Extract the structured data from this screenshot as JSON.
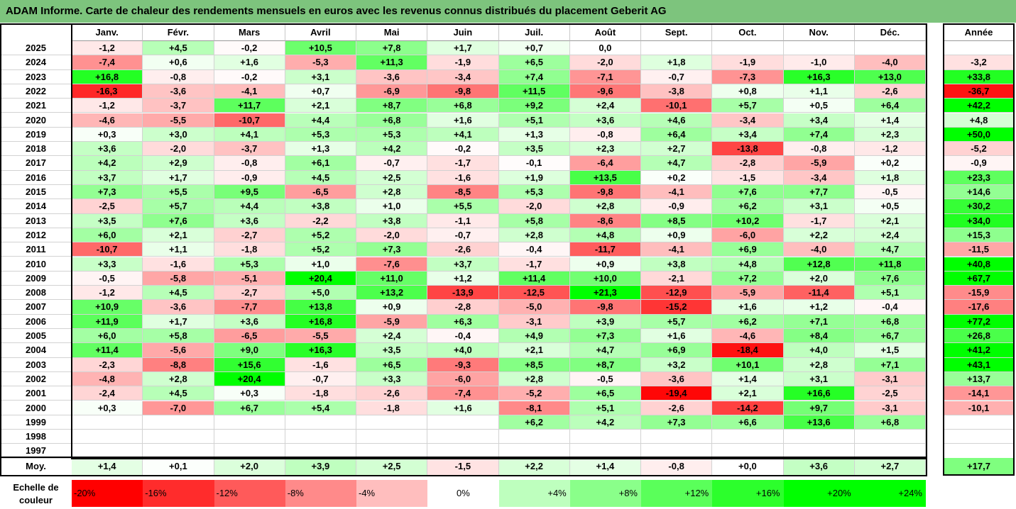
{
  "title": "ADAM Informe. Carte de chaleur des rendements mensuels en euros avec les revenus connus distribués du placement Geberit AG",
  "colors": {
    "title_bar": "#7dc47d",
    "negative_max": "#ff0000",
    "positive_max": "#00ff00",
    "neutral": "#ffffff"
  },
  "chart_data": {
    "type": "heatmap",
    "title": "ADAM Informe. Carte de chaleur des rendements mensuels en euros avec les revenus connus distribués du placement Geberit AG",
    "columns": [
      "Janv.",
      "Févr.",
      "Mars",
      "Avril",
      "Mai",
      "Juin",
      "Juil.",
      "Août",
      "Sept.",
      "Oct.",
      "Nov.",
      "Déc."
    ],
    "year_header": "Année",
    "rows": [
      {
        "year": "2025",
        "months": [
          "-1,2",
          "+4,5",
          "-0,2",
          "+10,5",
          "+7,8",
          "+1,7",
          "+0,7",
          "0,0",
          "",
          "",
          "",
          ""
        ],
        "annual": ""
      },
      {
        "year": "2024",
        "months": [
          "-7,4",
          "+0,6",
          "+1,6",
          "-5,3",
          "+11,3",
          "-1,9",
          "+6,5",
          "-2,0",
          "+1,8",
          "-1,9",
          "-1,0",
          "-4,0"
        ],
        "annual": "-3,2"
      },
      {
        "year": "2023",
        "months": [
          "+16,8",
          "-0,8",
          "-0,2",
          "+3,1",
          "-3,6",
          "-3,4",
          "+7,4",
          "-7,1",
          "-0,7",
          "-7,3",
          "+16,3",
          "+13,0"
        ],
        "annual": "+33,8"
      },
      {
        "year": "2022",
        "months": [
          "-16,3",
          "-3,6",
          "-4,1",
          "+0,7",
          "-6,9",
          "-9,8",
          "+11,5",
          "-9,6",
          "-3,8",
          "+0,8",
          "+1,1",
          "-2,6"
        ],
        "annual": "-36,7"
      },
      {
        "year": "2021",
        "months": [
          "-1,2",
          "-3,7",
          "+11,7",
          "+2,1",
          "+8,7",
          "+6,8",
          "+9,2",
          "+2,4",
          "-10,1",
          "+5,7",
          "+0,5",
          "+6,4"
        ],
        "annual": "+42,2"
      },
      {
        "year": "2020",
        "months": [
          "-4,6",
          "-5,5",
          "-10,7",
          "+4,4",
          "+6,8",
          "+1,6",
          "+5,1",
          "+3,6",
          "+4,6",
          "-3,4",
          "+3,4",
          "+1,4"
        ],
        "annual": "+4,8"
      },
      {
        "year": "2019",
        "months": [
          "+0,3",
          "+3,0",
          "+4,1",
          "+5,3",
          "+5,3",
          "+4,1",
          "+1,3",
          "-0,8",
          "+6,4",
          "+3,4",
          "+7,4",
          "+2,3"
        ],
        "annual": "+50,0"
      },
      {
        "year": "2018",
        "months": [
          "+3,6",
          "-2,0",
          "-3,7",
          "+1,3",
          "+4,2",
          "-0,2",
          "+3,5",
          "+2,3",
          "+2,7",
          "-13,8",
          "-0,8",
          "-1,2"
        ],
        "annual": "-5,2"
      },
      {
        "year": "2017",
        "months": [
          "+4,2",
          "+2,9",
          "-0,8",
          "+6,1",
          "-0,7",
          "-1,7",
          "-0,1",
          "-6,4",
          "+4,7",
          "-2,8",
          "-5,9",
          "+0,2"
        ],
        "annual": "-0,9"
      },
      {
        "year": "2016",
        "months": [
          "+3,7",
          "+1,7",
          "-0,9",
          "+4,5",
          "+2,5",
          "-1,6",
          "+1,9",
          "+13,5",
          "+0,2",
          "-1,5",
          "-3,4",
          "+1,8"
        ],
        "annual": "+23,3"
      },
      {
        "year": "2015",
        "months": [
          "+7,3",
          "+5,5",
          "+9,5",
          "-6,5",
          "+2,8",
          "-8,5",
          "+5,3",
          "-9,8",
          "-4,1",
          "+7,6",
          "+7,7",
          "-0,5"
        ],
        "annual": "+14,6"
      },
      {
        "year": "2014",
        "months": [
          "-2,5",
          "+5,7",
          "+4,4",
          "+3,8",
          "+1,0",
          "+5,5",
          "-2,0",
          "+2,8",
          "-0,9",
          "+6,2",
          "+3,1",
          "+0,5"
        ],
        "annual": "+30,2"
      },
      {
        "year": "2013",
        "months": [
          "+3,5",
          "+7,6",
          "+3,6",
          "-2,2",
          "+3,8",
          "-1,1",
          "+5,8",
          "-8,6",
          "+8,5",
          "+10,2",
          "-1,7",
          "+2,1"
        ],
        "annual": "+34,0"
      },
      {
        "year": "2012",
        "months": [
          "+6,0",
          "+2,1",
          "-2,7",
          "+5,2",
          "-2,0",
          "-0,7",
          "+2,8",
          "+4,8",
          "+0,9",
          "-6,0",
          "+2,2",
          "+2,4"
        ],
        "annual": "+15,3"
      },
      {
        "year": "2011",
        "months": [
          "-10,7",
          "+1,1",
          "-1,8",
          "+5,2",
          "+7,3",
          "-2,6",
          "-0,4",
          "-11,7",
          "-4,1",
          "+6,9",
          "-4,0",
          "+4,7"
        ],
        "annual": "-11,5"
      },
      {
        "year": "2010",
        "months": [
          "+3,3",
          "-1,6",
          "+5,3",
          "+1,0",
          "-7,6",
          "+3,7",
          "-1,7",
          "+0,9",
          "+3,8",
          "+4,8",
          "+12,8",
          "+11,8"
        ],
        "annual": "+40,8"
      },
      {
        "year": "2009",
        "months": [
          "-0,5",
          "-5,8",
          "-5,1",
          "+20,4",
          "+11,0",
          "+1,2",
          "+11,4",
          "+10,0",
          "-2,1",
          "+7,2",
          "+2,0",
          "+7,6"
        ],
        "annual": "+67,7"
      },
      {
        "year": "2008",
        "months": [
          "-1,2",
          "+4,5",
          "-2,7",
          "+5,0",
          "+13,2",
          "-13,9",
          "-12,5",
          "+21,3",
          "-12,9",
          "-5,9",
          "-11,4",
          "+5,1"
        ],
        "annual": "-15,9"
      },
      {
        "year": "2007",
        "months": [
          "+10,9",
          "-3,6",
          "-7,7",
          "+13,8",
          "+0,9",
          "-2,8",
          "-5,0",
          "-9,8",
          "-15,2",
          "+1,6",
          "+1,2",
          "-0,4"
        ],
        "annual": "-17,6"
      },
      {
        "year": "2006",
        "months": [
          "+11,9",
          "+1,7",
          "+3,6",
          "+16,8",
          "-5,9",
          "+6,3",
          "-3,1",
          "+3,9",
          "+5,7",
          "+6,2",
          "+7,1",
          "+6,8"
        ],
        "annual": "+77,2"
      },
      {
        "year": "2005",
        "months": [
          "+6,0",
          "+5,8",
          "-6,5",
          "-5,5",
          "+2,4",
          "-0,4",
          "+4,9",
          "+7,3",
          "+1,6",
          "-4,6",
          "+8,4",
          "+6,7"
        ],
        "annual": "+26,8"
      },
      {
        "year": "2004",
        "months": [
          "+11,4",
          "-5,6",
          "+9,0",
          "+16,3",
          "+3,5",
          "+4,0",
          "+2,1",
          "+4,7",
          "+6,9",
          "-18,4",
          "+4,0",
          "+1,5"
        ],
        "annual": "+41,2"
      },
      {
        "year": "2003",
        "months": [
          "-2,3",
          "-8,8",
          "+15,6",
          "-1,6",
          "+6,5",
          "-9,3",
          "+8,5",
          "+8,7",
          "+3,2",
          "+10,1",
          "+2,8",
          "+7,1"
        ],
        "annual": "+43,1"
      },
      {
        "year": "2002",
        "months": [
          "-4,8",
          "+2,8",
          "+20,4",
          "-0,7",
          "+3,3",
          "-6,0",
          "+2,8",
          "-0,5",
          "-3,6",
          "+1,4",
          "+3,1",
          "-3,1"
        ],
        "annual": "+13,7"
      },
      {
        "year": "2001",
        "months": [
          "-2,4",
          "+4,5",
          "+0,3",
          "-1,8",
          "-2,6",
          "-7,4",
          "-5,2",
          "+6,5",
          "-19,4",
          "+2,1",
          "+16,6",
          "-2,5"
        ],
        "annual": "-14,1"
      },
      {
        "year": "2000",
        "months": [
          "+0,3",
          "-7,0",
          "+6,7",
          "+5,4",
          "-1,8",
          "+1,6",
          "-8,1",
          "+5,1",
          "-2,6",
          "-14,2",
          "+9,7",
          "-3,1"
        ],
        "annual": "-10,1"
      },
      {
        "year": "1999",
        "months": [
          "",
          "",
          "",
          "",
          "",
          "",
          "+6,2",
          "+4,2",
          "+7,3",
          "+6,6",
          "+13,6",
          "+6,8"
        ],
        "annual": ""
      },
      {
        "year": "1998",
        "months": [
          "",
          "",
          "",
          "",
          "",
          "",
          "",
          "",
          "",
          "",
          "",
          ""
        ],
        "annual": ""
      },
      {
        "year": "1997",
        "months": [
          "",
          "",
          "",
          "",
          "",
          "",
          "",
          "",
          "",
          "",
          "",
          ""
        ],
        "annual": ""
      }
    ],
    "average": {
      "label": "Moy.",
      "months": [
        "+1,4",
        "+0,1",
        "+2,0",
        "+3,9",
        "+2,5",
        "-1,5",
        "+2,2",
        "+1,4",
        "-0,8",
        "+0,0",
        "+3,6",
        "+2,7"
      ],
      "annual": "+17,7"
    },
    "legend": {
      "label_line1": "Echelle de",
      "label_line2": "couleur",
      "steps": [
        {
          "text": "-20%",
          "value": -20
        },
        {
          "text": "-16%",
          "value": -16
        },
        {
          "text": "-12%",
          "value": -12
        },
        {
          "text": "-8%",
          "value": -8
        },
        {
          "text": "-4%",
          "value": -4
        },
        {
          "text": "0%",
          "value": 0
        },
        {
          "text": "+4%",
          "value": 4
        },
        {
          "text": "+8%",
          "value": 8
        },
        {
          "text": "+12%",
          "value": 12
        },
        {
          "text": "+16%",
          "value": 16
        },
        {
          "text": "+20%",
          "value": 20
        },
        {
          "text": "+24%",
          "value": 24
        }
      ]
    }
  }
}
